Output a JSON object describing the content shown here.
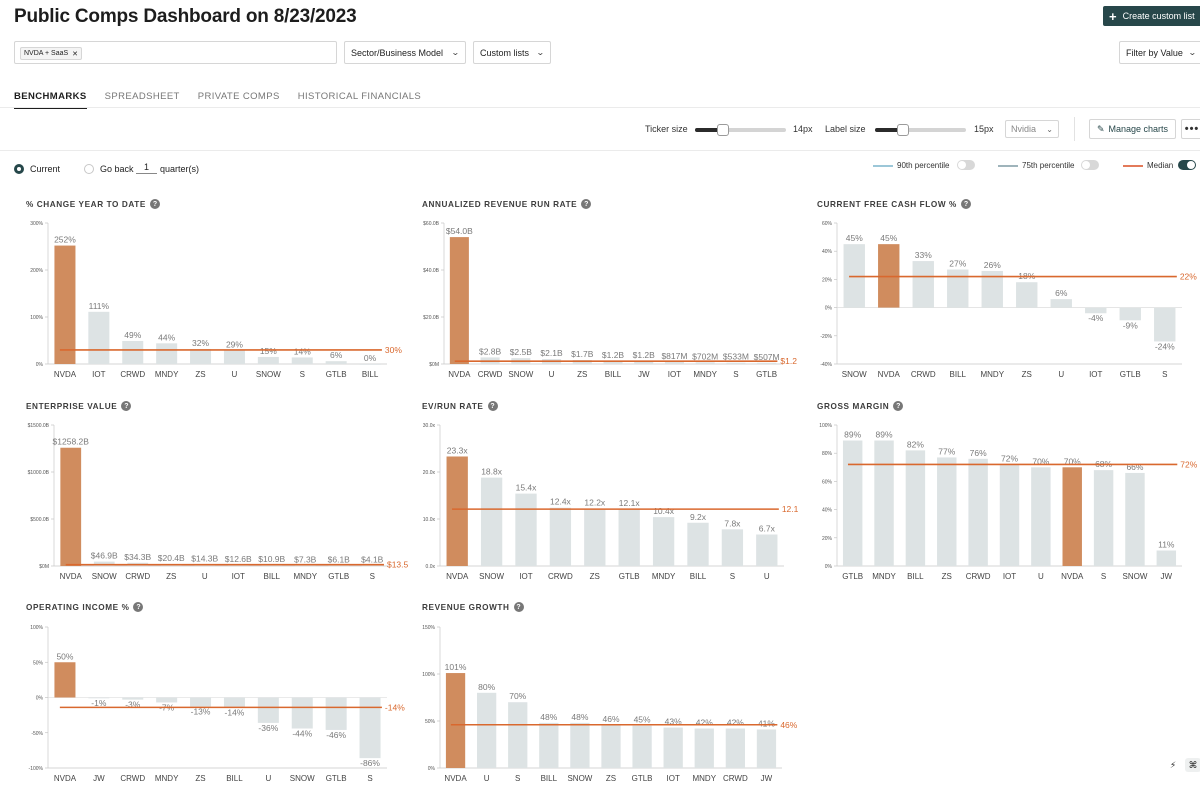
{
  "header": {
    "title": "Public Comps Dashboard on 8/23/2023",
    "create_button": "Create custom list"
  },
  "filters": {
    "chip": "NVDA + SaaS",
    "sector_dropdown": "Sector/Business Model",
    "custom_lists_dropdown": "Custom lists",
    "filter_by": "Filter by Value"
  },
  "tabs": [
    "BENCHMARKS",
    "SPREADSHEET",
    "PRIVATE COMPS",
    "HISTORICAL FINANCIALS"
  ],
  "controls": {
    "ticker_size_label": "Ticker size",
    "ticker_size_value": "14px",
    "ticker_size_fraction": 0.31,
    "label_size_label": "Label size",
    "label_size_value": "15px",
    "label_size_fraction": 0.31,
    "highlight_select": "Nvidia",
    "manage_charts": "Manage charts",
    "more": "•••"
  },
  "period": {
    "current_label": "Current",
    "go_back_label": "Go back",
    "go_back_value": "1",
    "quarters_label": "quarter(s)"
  },
  "legend": {
    "p90": "90th percentile",
    "p75": "75th percentile",
    "median": "Median"
  },
  "colors": {
    "highlight": "#d08c5e",
    "bar": "#dde3e4",
    "median": "#d9682e",
    "label": "#7a7a7a",
    "median_label": "#d9682e",
    "brand": "#27474a"
  },
  "chart_data": [
    {
      "type": "bar",
      "title": "% CHANGE YEAR TO DATE",
      "categories": [
        "NVDA",
        "IOT",
        "CRWD",
        "MNDY",
        "ZS",
        "U",
        "SNOW",
        "S",
        "GTLB",
        "BILL"
      ],
      "values": [
        252,
        111,
        49,
        44,
        32,
        29,
        15,
        14,
        6,
        0
      ],
      "labels": [
        "252%",
        "111%",
        "49%",
        "44%",
        "32%",
        "29%",
        "15%",
        "14%",
        "6%",
        "0%"
      ],
      "highlight": "NVDA",
      "median": 30,
      "median_label": "30%",
      "ylim": [
        0,
        300
      ],
      "yticks": [
        0,
        100,
        200,
        300
      ],
      "ytick_labels": [
        "0%",
        "100%",
        "200%",
        "300%"
      ]
    },
    {
      "type": "bar",
      "title": "ANNUALIZED REVENUE RUN RATE",
      "categories": [
        "NVDA",
        "CRWD",
        "SNOW",
        "U",
        "ZS",
        "BILL",
        "JW",
        "IOT",
        "MNDY",
        "S",
        "GTLB"
      ],
      "values": [
        54.0,
        2.8,
        2.5,
        2.1,
        1.7,
        1.2,
        1.2,
        0.817,
        0.702,
        0.533,
        0.507
      ],
      "labels": [
        "$54.0B",
        "$2.8B",
        "$2.5B",
        "$2.1B",
        "$1.7B",
        "$1.2B",
        "$1.2B",
        "$817M",
        "$702M",
        "$533M",
        "$507M"
      ],
      "highlight": "NVDA",
      "median": 1.2,
      "median_label": "$1.2",
      "ylim": [
        0,
        60
      ],
      "yticks": [
        0,
        20,
        40,
        60
      ],
      "ytick_labels": [
        "$0M",
        "$20.0B",
        "$40.0B",
        "$60.0B"
      ]
    },
    {
      "type": "bar",
      "title": "CURRENT FREE CASH FLOW %",
      "categories": [
        "SNOW",
        "NVDA",
        "CRWD",
        "BILL",
        "MNDY",
        "ZS",
        "U",
        "IOT",
        "GTLB",
        "S"
      ],
      "values": [
        45,
        45,
        33,
        27,
        26,
        18,
        6,
        -4,
        -9,
        -24
      ],
      "labels": [
        "45%",
        "45%",
        "33%",
        "27%",
        "26%",
        "18%",
        "6%",
        "-4%",
        "-9%",
        "-24%"
      ],
      "highlight": "NVDA",
      "median": 22,
      "median_label": "22%",
      "ylim": [
        -40,
        60
      ],
      "yticks": [
        -40,
        -20,
        0,
        20,
        40,
        60
      ],
      "ytick_labels": [
        "-40%",
        "-20%",
        "0%",
        "20%",
        "40%",
        "60%"
      ]
    },
    {
      "type": "bar",
      "title": "ENTERPRISE VALUE",
      "categories": [
        "NVDA",
        "SNOW",
        "CRWD",
        "ZS",
        "U",
        "IOT",
        "BILL",
        "MNDY",
        "GTLB",
        "S"
      ],
      "values": [
        1258.2,
        46.9,
        34.3,
        20.4,
        14.3,
        12.6,
        10.9,
        7.3,
        6.1,
        4.1
      ],
      "labels": [
        "$1258.2B",
        "$46.9B",
        "$34.3B",
        "$20.4B",
        "$14.3B",
        "$12.6B",
        "$10.9B",
        "$7.3B",
        "$6.1B",
        "$4.1B"
      ],
      "highlight": "NVDA",
      "median": 13.5,
      "median_label": "$13.5",
      "ylim": [
        0,
        1500
      ],
      "yticks": [
        0,
        500,
        1000,
        1500
      ],
      "ytick_labels": [
        "$0M",
        "$500.0B",
        "$1000.0B",
        "$1500.0B"
      ]
    },
    {
      "type": "bar",
      "title": "EV/RUN RATE",
      "categories": [
        "NVDA",
        "SNOW",
        "IOT",
        "CRWD",
        "ZS",
        "GTLB",
        "MNDY",
        "BILL",
        "S",
        "U"
      ],
      "values": [
        23.3,
        18.8,
        15.4,
        12.4,
        12.2,
        12.1,
        10.4,
        9.2,
        7.8,
        6.7
      ],
      "labels": [
        "23.3x",
        "18.8x",
        "15.4x",
        "12.4x",
        "12.2x",
        "12.1x",
        "10.4x",
        "9.2x",
        "7.8x",
        "6.7x"
      ],
      "highlight": "NVDA",
      "median": 12.1,
      "median_label": "12.1",
      "ylim": [
        0,
        30
      ],
      "yticks": [
        0,
        10,
        20,
        30
      ],
      "ytick_labels": [
        "0.0x",
        "10.0x",
        "20.0x",
        "30.0x"
      ]
    },
    {
      "type": "bar",
      "title": "GROSS MARGIN",
      "categories": [
        "GTLB",
        "MNDY",
        "BILL",
        "ZS",
        "CRWD",
        "IOT",
        "U",
        "NVDA",
        "S",
        "SNOW",
        "JW"
      ],
      "values": [
        89,
        89,
        82,
        77,
        76,
        72,
        70,
        70,
        68,
        66,
        11
      ],
      "labels": [
        "89%",
        "89%",
        "82%",
        "77%",
        "76%",
        "72%",
        "70%",
        "70%",
        "68%",
        "66%",
        "11%"
      ],
      "highlight": "NVDA",
      "median": 72,
      "median_label": "72%",
      "ylim": [
        0,
        100
      ],
      "yticks": [
        0,
        20,
        40,
        60,
        80,
        100
      ],
      "ytick_labels": [
        "0%",
        "20%",
        "40%",
        "60%",
        "80%",
        "100%"
      ]
    },
    {
      "type": "bar",
      "title": "OPERATING INCOME %",
      "categories": [
        "NVDA",
        "JW",
        "CRWD",
        "MNDY",
        "ZS",
        "BILL",
        "U",
        "SNOW",
        "GTLB",
        "S"
      ],
      "values": [
        50,
        -1,
        -3,
        -7,
        -13,
        -14,
        -36,
        -44,
        -46,
        -86
      ],
      "labels": [
        "50%",
        "-1%",
        "-3%",
        "-7%",
        "-13%",
        "-14%",
        "-36%",
        "-44%",
        "-46%",
        "-86%"
      ],
      "highlight": "NVDA",
      "median": -14,
      "median_label": "-14%",
      "ylim": [
        -100,
        100
      ],
      "yticks": [
        -100,
        -50,
        0,
        50,
        100
      ],
      "ytick_labels": [
        "-100%",
        "-50%",
        "0%",
        "50%",
        "100%"
      ]
    },
    {
      "type": "bar",
      "title": "REVENUE GROWTH",
      "categories": [
        "NVDA",
        "U",
        "S",
        "BILL",
        "SNOW",
        "ZS",
        "GTLB",
        "IOT",
        "MNDY",
        "CRWD",
        "JW"
      ],
      "values": [
        101,
        80,
        70,
        48,
        48,
        46,
        45,
        43,
        42,
        42,
        41
      ],
      "labels": [
        "101%",
        "80%",
        "70%",
        "48%",
        "48%",
        "46%",
        "45%",
        "43%",
        "42%",
        "42%",
        "41%"
      ],
      "highlight": "NVDA",
      "median": 46,
      "median_label": "46%",
      "ylim": [
        0,
        150
      ],
      "yticks": [
        0,
        50,
        100,
        150
      ],
      "ytick_labels": [
        "0%",
        "50%",
        "100%",
        "150%"
      ]
    }
  ]
}
